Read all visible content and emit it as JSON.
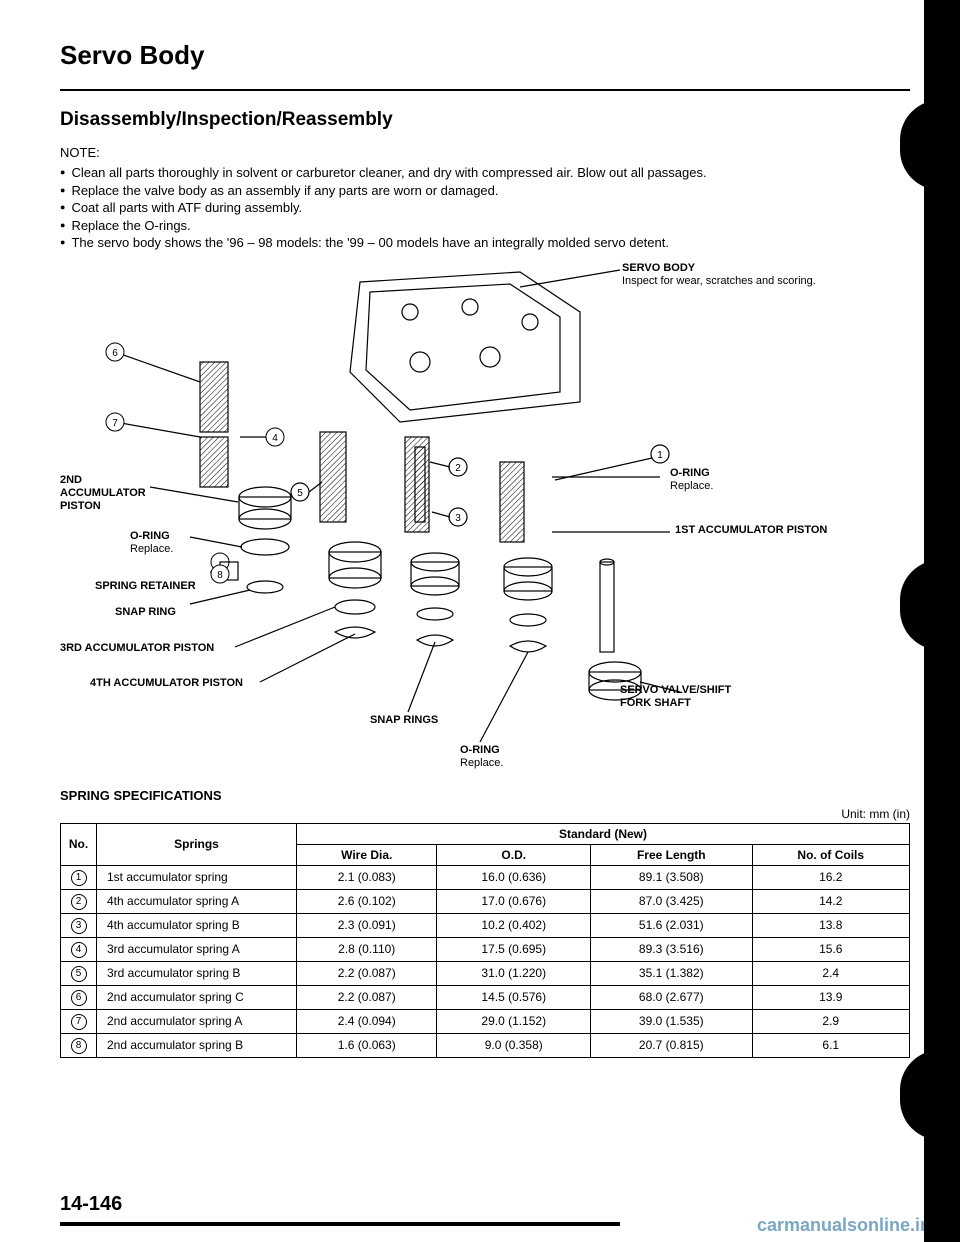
{
  "page": {
    "main_title": "Servo Body",
    "section_title": "Disassembly/Inspection/Reassembly",
    "note_label": "NOTE:",
    "notes": [
      "Clean all parts thoroughly in solvent or carburetor cleaner, and dry with compressed air. Blow out all passages.",
      "Replace the valve body as an assembly if any parts are worn or damaged.",
      "Coat all parts with ATF during assembly.",
      "Replace the O-rings.",
      "The servo body shows the '96 – 98 models: the '99 – 00 models have an integrally molded servo detent."
    ],
    "page_number": "14-146",
    "watermark": "carmanualsonline.info"
  },
  "callouts": {
    "servo_body": {
      "label": "SERVO BODY",
      "sub": "Inspect for wear, scratches and scoring."
    },
    "second_piston": {
      "label": "2ND ACCUMULATOR PISTON"
    },
    "oring_left": {
      "label": "O-RING",
      "sub": "Replace."
    },
    "spring_retainer": {
      "label": "SPRING RETAINER"
    },
    "snap_ring": {
      "label": "SNAP RING"
    },
    "third_piston": {
      "label": "3RD ACCUMULATOR PISTON"
    },
    "fourth_piston": {
      "label": "4TH ACCUMULATOR PISTON"
    },
    "snap_rings": {
      "label": "SNAP RINGS"
    },
    "oring_bottom": {
      "label": "O-RING",
      "sub": "Replace."
    },
    "oring_right": {
      "label": "O-RING",
      "sub": "Replace."
    },
    "first_piston": {
      "label": "1ST ACCUMULATOR PISTON"
    },
    "servo_valve": {
      "label": "SERVO VALVE/SHIFT FORK SHAFT"
    },
    "markers": {
      "n1": "1",
      "n2": "2",
      "n3": "3",
      "n4": "4",
      "n5": "5",
      "n6": "6",
      "n7": "7",
      "n8": "8"
    }
  },
  "spec": {
    "title": "SPRING SPECIFICATIONS",
    "unit": "Unit: mm (in)",
    "headers": {
      "no": "No.",
      "springs": "Springs",
      "standard": "Standard (New)",
      "wire": "Wire Dia.",
      "od": "O.D.",
      "free": "Free Length",
      "coils": "No. of Coils"
    },
    "rows": [
      {
        "no": "1",
        "name": "1st accumulator spring",
        "wire": "2.1 (0.083)",
        "od": "16.0 (0.636)",
        "free": "89.1 (3.508)",
        "coils": "16.2"
      },
      {
        "no": "2",
        "name": "4th accumulator spring A",
        "wire": "2.6 (0.102)",
        "od": "17.0 (0.676)",
        "free": "87.0 (3.425)",
        "coils": "14.2"
      },
      {
        "no": "3",
        "name": "4th accumulator spring B",
        "wire": "2.3 (0.091)",
        "od": "10.2 (0.402)",
        "free": "51.6 (2.031)",
        "coils": "13.8"
      },
      {
        "no": "4",
        "name": "3rd accumulator spring A",
        "wire": "2.8 (0.110)",
        "od": "17.5 (0.695)",
        "free": "89.3 (3.516)",
        "coils": "15.6"
      },
      {
        "no": "5",
        "name": "3rd accumulator spring B",
        "wire": "2.2 (0.087)",
        "od": "31.0 (1.220)",
        "free": "35.1 (1.382)",
        "coils": "2.4"
      },
      {
        "no": "6",
        "name": "2nd accumulator spring C",
        "wire": "2.2 (0.087)",
        "od": "14.5 (0.576)",
        "free": "68.0 (2.677)",
        "coils": "13.9"
      },
      {
        "no": "7",
        "name": "2nd accumulator spring A",
        "wire": "2.4 (0.094)",
        "od": "29.0 (1.152)",
        "free": "39.0 (1.535)",
        "coils": "2.9"
      },
      {
        "no": "8",
        "name": "2nd accumulator spring B",
        "wire": "1.6 (0.063)",
        "od": "9.0 (0.358)",
        "free": "20.7 (0.815)",
        "coils": "6.1"
      }
    ]
  }
}
